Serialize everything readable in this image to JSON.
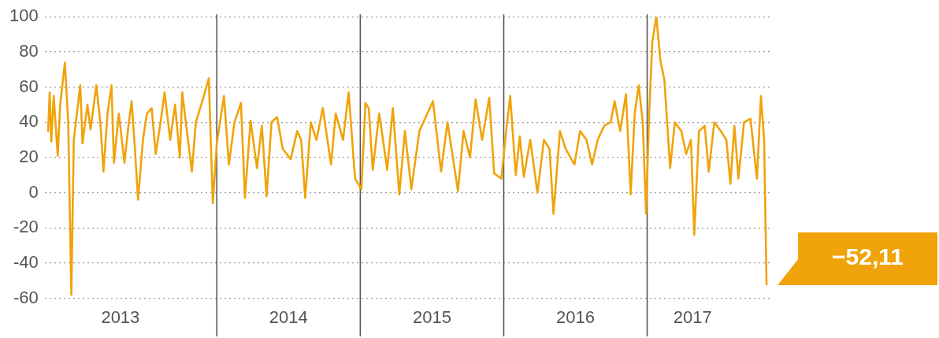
{
  "chart_data": {
    "type": "line",
    "xlim": [
      2012.8,
      2017.87
    ],
    "xticks": [
      {
        "value": 2013.328,
        "label": "2013"
      },
      {
        "value": 2014.5,
        "label": "2014"
      },
      {
        "value": 2015.5,
        "label": "2015"
      },
      {
        "value": 2016.5,
        "label": "2016"
      },
      {
        "value": 2017.317,
        "label": "2017"
      }
    ],
    "ylim": [
      -60,
      100
    ],
    "yticks": [
      -60,
      -40,
      -20,
      0,
      20,
      40,
      60,
      80,
      100
    ],
    "grid": "y",
    "marker": "none",
    "line_style": "solid",
    "ref_lines": [
      {
        "axis": "x",
        "value": 2014,
        "color": "#555555"
      },
      {
        "axis": "x",
        "value": 2015,
        "color": "#555555"
      },
      {
        "axis": "x",
        "value": 2016,
        "color": "#555555"
      },
      {
        "axis": "x",
        "value": 2017,
        "color": "#555555"
      }
    ],
    "annotations": [
      {
        "text": "−52,11",
        "x": 2017.832,
        "y": -52.11
      }
    ],
    "series": [
      {
        "color": "#f0a30a",
        "x": [
          2012.824,
          2012.835,
          2012.846,
          2012.863,
          2012.891,
          2012.908,
          2012.941,
          2012.964,
          2012.986,
          2013.003,
          2013.048,
          2013.064,
          2013.098,
          2013.12,
          2013.16,
          2013.188,
          2013.21,
          2013.238,
          2013.266,
          2013.283,
          2013.317,
          2013.356,
          2013.384,
          2013.406,
          2013.429,
          2013.451,
          2013.485,
          2013.513,
          2013.546,
          2013.574,
          2013.608,
          2013.636,
          2013.675,
          2013.709,
          2013.742,
          2013.759,
          2013.787,
          2013.826,
          2013.854,
          2013.899,
          2013.944,
          2013.972,
          2014.0,
          2014.022,
          2014.05,
          2014.084,
          2014.123,
          2014.168,
          2014.196,
          2014.235,
          2014.28,
          2014.314,
          2014.347,
          2014.381,
          2014.42,
          2014.459,
          2014.515,
          2014.56,
          2014.588,
          2014.616,
          2014.655,
          2014.695,
          2014.739,
          2014.796,
          2014.829,
          2014.88,
          2014.919,
          2014.964,
          2015.008,
          2015.036,
          2015.059,
          2015.087,
          2015.132,
          2015.188,
          2015.227,
          2015.272,
          2015.311,
          2015.356,
          2015.412,
          2015.468,
          2015.507,
          2015.563,
          2015.608,
          2015.681,
          2015.72,
          2015.765,
          2015.804,
          2015.849,
          2015.899,
          2015.933,
          2015.983,
          2016.017,
          2016.045,
          2016.084,
          2016.112,
          2016.14,
          2016.185,
          2016.235,
          2016.28,
          2016.319,
          2016.347,
          2016.392,
          2016.431,
          2016.493,
          2016.532,
          2016.577,
          2016.616,
          2016.655,
          2016.7,
          2016.745,
          2016.773,
          2016.812,
          2016.852,
          2016.885,
          2016.913,
          2016.941,
          2016.969,
          2016.992,
          2017.014,
          2017.036,
          2017.064,
          2017.092,
          2017.12,
          2017.16,
          2017.193,
          2017.238,
          2017.272,
          2017.305,
          2017.328,
          2017.361,
          2017.401,
          2017.429,
          2017.468,
          2017.513,
          2017.552,
          2017.58,
          2017.608,
          2017.636,
          2017.675,
          2017.72,
          2017.765,
          2017.793,
          2017.815,
          2017.832
        ],
        "values": [
          35,
          57,
          29,
          55,
          21,
          50,
          74,
          40,
          -58,
          30,
          61,
          28,
          50,
          36,
          61,
          40,
          12,
          45,
          61,
          17,
          45,
          17,
          38,
          52,
          25,
          -4,
          30,
          45,
          48,
          22,
          40,
          57,
          30,
          50,
          20,
          57,
          38,
          12,
          40,
          52,
          65,
          -6,
          28,
          40,
          55,
          16,
          40,
          51,
          -3,
          41,
          14,
          38,
          -2,
          40,
          43,
          25,
          19,
          35,
          30,
          -3,
          40,
          30,
          48,
          16,
          45,
          30,
          57,
          8,
          2,
          51,
          48,
          13,
          45,
          13,
          48,
          -1,
          35,
          2,
          35,
          45,
          52,
          12,
          40,
          1,
          35,
          20,
          53,
          30,
          54,
          11,
          8,
          35,
          55,
          10,
          32,
          9,
          30,
          0,
          30,
          25,
          -12,
          35,
          25,
          16,
          35,
          30,
          16,
          30,
          38,
          40,
          52,
          35,
          56,
          -1,
          45,
          61,
          40,
          -12,
          45,
          86,
          100,
          75,
          64,
          14,
          40,
          35,
          22,
          30,
          -24,
          35,
          38,
          12,
          40,
          35,
          30,
          5,
          38,
          8,
          40,
          42,
          8,
          55,
          30,
          -52.11
        ]
      }
    ]
  }
}
